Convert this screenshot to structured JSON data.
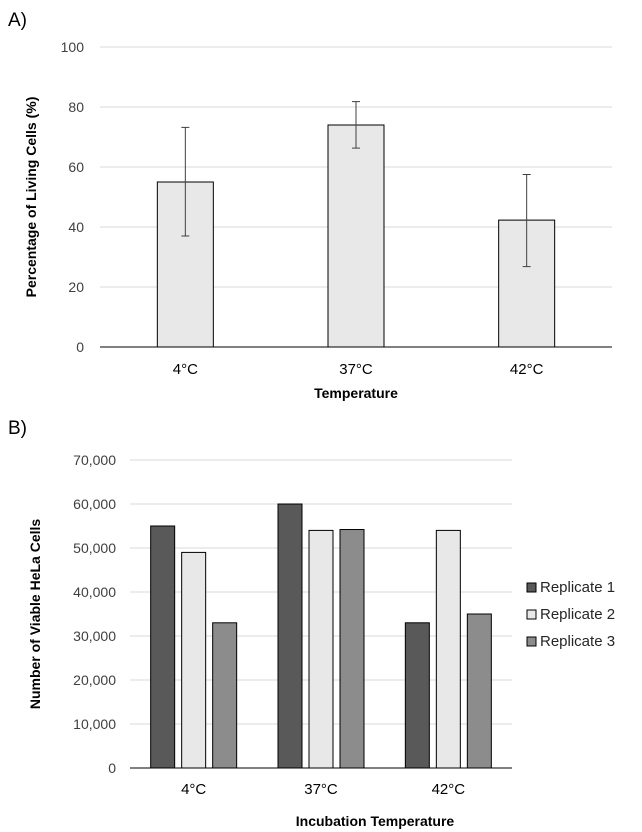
{
  "chart_data": [
    {
      "panel_label": "A)",
      "type": "bar",
      "categories": [
        "4°C",
        "37°C",
        "42°C"
      ],
      "values": [
        55,
        74,
        42.3
      ],
      "error_low": [
        37,
        66.3,
        26.8
      ],
      "error_high": [
        73.2,
        81.8,
        57.5
      ],
      "xlabel": "Temperature",
      "ylabel": "Percentage of Living Cells (%)",
      "ylim": [
        0,
        100
      ],
      "yticks": [
        "0",
        "20",
        "40",
        "60",
        "80",
        "100"
      ],
      "ytick_values": [
        0,
        20,
        40,
        60,
        80,
        100
      ],
      "grid": true,
      "bar_color": "#e8e8e8"
    },
    {
      "panel_label": "B)",
      "type": "bar",
      "categories": [
        "4°C",
        "37°C",
        "42°C"
      ],
      "series": [
        {
          "name": "Replicate 1",
          "values": [
            55000,
            60000,
            33000
          ],
          "color": "#595959"
        },
        {
          "name": "Replicate 2",
          "values": [
            49000,
            54000,
            54000
          ],
          "color": "#e8e8e8"
        },
        {
          "name": "Replicate 3",
          "values": [
            33000,
            54200,
            35000
          ],
          "color": "#8c8c8c"
        }
      ],
      "xlabel": "Incubation Temperature",
      "ylabel": "Number of Viable HeLa Cells",
      "ylim": [
        0,
        70000
      ],
      "yticks": [
        "0",
        "10,000",
        "20,000",
        "30,000",
        "40,000",
        "50,000",
        "60,000",
        "70,000"
      ],
      "ytick_values": [
        0,
        10000,
        20000,
        30000,
        40000,
        50000,
        60000,
        70000
      ],
      "grid": true,
      "legend_position": "right"
    }
  ]
}
